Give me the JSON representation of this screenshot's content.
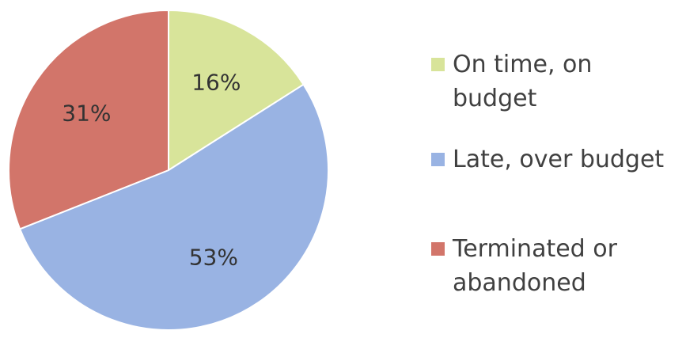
{
  "chart_data": {
    "type": "pie",
    "title": "",
    "slices": [
      {
        "label": "On time, on budget",
        "value": 16,
        "value_label": "16%",
        "color": "#d8e49a"
      },
      {
        "label": "Late, over budget",
        "value": 53,
        "value_label": "53%",
        "color": "#99b3e3"
      },
      {
        "label": "Terminated or abandoned",
        "value": 31,
        "value_label": "31%",
        "color": "#d2756a"
      }
    ],
    "start": "12 o'clock",
    "direction": "clockwise",
    "legend_position": "right"
  },
  "legend": {
    "items": [
      {
        "label": "On time, on\nbudget",
        "color": "#d8e49a"
      },
      {
        "label": "Late, over budget",
        "color": "#99b3e3"
      },
      {
        "label": "Terminated or\nabandoned",
        "color": "#d2756a"
      }
    ]
  }
}
